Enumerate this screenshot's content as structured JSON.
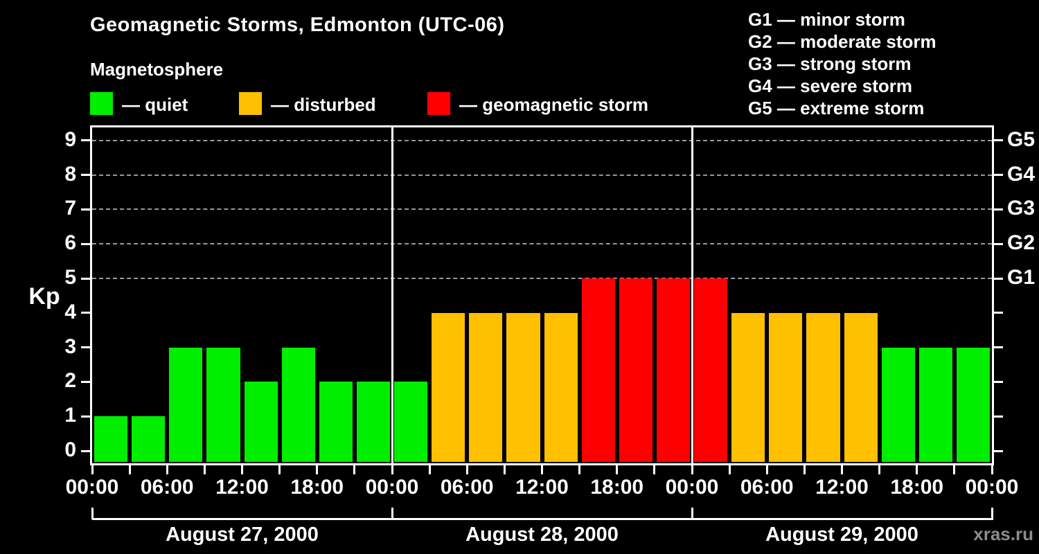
{
  "title": "Geomagnetic Storms, Edmonton (UTC-06)",
  "subtitle": "Magnetosphere",
  "condition_legend": [
    {
      "name": "quiet",
      "label": "— quiet",
      "color_key": "quiet"
    },
    {
      "name": "disturbed",
      "label": "— disturbed",
      "color_key": "disturbed"
    },
    {
      "name": "storm",
      "label": "— geomagnetic storm",
      "color_key": "storm"
    }
  ],
  "storm_scale_legend": [
    "G1 — minor storm",
    "G2 — moderate storm",
    "G3 — strong storm",
    "G4 — severe storm",
    "G5 — extreme storm"
  ],
  "watermark": "xras.ru",
  "chart_data": {
    "type": "bar",
    "title": "Geomagnetic Storms, Edmonton (UTC-06)",
    "ylabel": "Kp",
    "ylim": [
      0,
      9
    ],
    "y_ticks": [
      0,
      1,
      2,
      3,
      4,
      5,
      6,
      7,
      8,
      9
    ],
    "gridline_levels": [
      5,
      6,
      7,
      8,
      9
    ],
    "grid": "dashed",
    "right_axis_labels": [
      {
        "kp": 5,
        "label": "G1"
      },
      {
        "kp": 6,
        "label": "G2"
      },
      {
        "kp": 7,
        "label": "G3"
      },
      {
        "kp": 8,
        "label": "G4"
      },
      {
        "kp": 9,
        "label": "G5"
      }
    ],
    "bar_interval_hours": 3,
    "x_tick_step_hours": 3,
    "x_label_step_hours": 6,
    "x_labels": [
      "00:00",
      "06:00",
      "12:00",
      "18:00",
      "00:00",
      "06:00",
      "12:00",
      "18:00",
      "00:00",
      "06:00",
      "12:00",
      "18:00",
      "00:00"
    ],
    "days": [
      {
        "label": "August 27, 2000",
        "kp": [
          1,
          1,
          3,
          3,
          2,
          3,
          2,
          2
        ],
        "state": [
          "quiet",
          "quiet",
          "quiet",
          "quiet",
          "quiet",
          "quiet",
          "quiet",
          "quiet"
        ]
      },
      {
        "label": "August 28, 2000",
        "kp": [
          2,
          4,
          4,
          4,
          4,
          5,
          5,
          5
        ],
        "state": [
          "quiet",
          "disturbed",
          "disturbed",
          "disturbed",
          "disturbed",
          "storm",
          "storm",
          "storm"
        ]
      },
      {
        "label": "August 29, 2000",
        "kp": [
          5,
          4,
          4,
          4,
          4,
          3,
          3,
          3
        ],
        "state": [
          "storm",
          "disturbed",
          "disturbed",
          "disturbed",
          "disturbed",
          "quiet",
          "quiet",
          "quiet"
        ]
      }
    ],
    "colors": {
      "quiet": "#00ee00",
      "disturbed": "#ffc000",
      "storm": "#ff0000",
      "axis": "#ffffff",
      "grid": "#9a9a9a",
      "background": "#000000",
      "watermark": "#8c8c8c"
    }
  }
}
